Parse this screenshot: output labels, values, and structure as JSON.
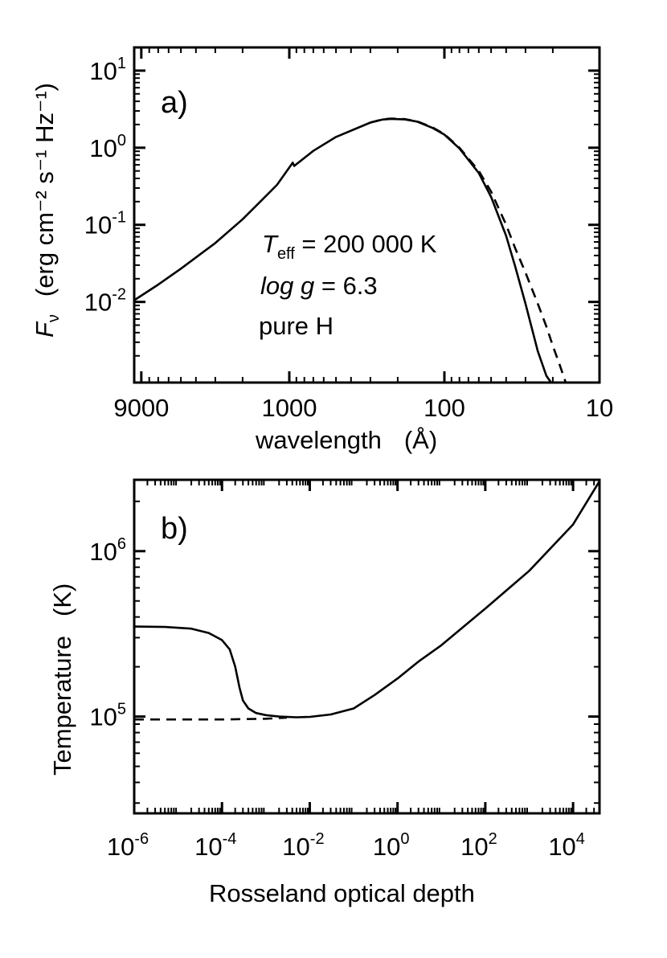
{
  "chart_data": [
    {
      "type": "line",
      "panel_label": "a)",
      "title": "",
      "xlabel": "wavelength",
      "xlabel_unit": "(Å)",
      "ylabel": "(erg cm⁻² s⁻¹ Hz⁻¹)",
      "ylabel_symbol": "F",
      "ylabel_subscript": "ν",
      "xscale": "log",
      "yscale": "log",
      "x_reversed": true,
      "xlim": [
        10000,
        10
      ],
      "ylim": [
        0.0009,
        20
      ],
      "xticks": [
        {
          "value": 9000,
          "label": "9000"
        },
        {
          "value": 1000,
          "label": "1000"
        },
        {
          "value": 100,
          "label": "100"
        },
        {
          "value": 10,
          "label": "10"
        }
      ],
      "yticks": [
        {
          "value": 0.01,
          "base": "10",
          "exp": "-2"
        },
        {
          "value": 0.1,
          "base": "10",
          "exp": "-1"
        },
        {
          "value": 1,
          "base": "10",
          "exp": "0"
        },
        {
          "value": 10,
          "base": "10",
          "exp": "1"
        }
      ],
      "annotations": {
        "teff_symbol": "T",
        "teff_subscript": "eff",
        "teff_value": " = 200 000 K",
        "logg_symbol": "log g",
        "logg_value": " = 6.3",
        "composition": "pure H"
      },
      "series": [
        {
          "name": "solid",
          "style": "solid",
          "x": [
            10000,
            7000,
            5000,
            3000,
            2000,
            1500,
            1200,
            950,
            930,
            700,
            500,
            300,
            250,
            220,
            180,
            150,
            120,
            100,
            80,
            60,
            50,
            40,
            35,
            30,
            25,
            22,
            20.5
          ],
          "y": [
            0.0105,
            0.0168,
            0.027,
            0.058,
            0.118,
            0.21,
            0.33,
            0.64,
            0.58,
            0.91,
            1.38,
            2.12,
            2.32,
            2.37,
            2.33,
            2.18,
            1.82,
            1.48,
            0.98,
            0.47,
            0.23,
            0.072,
            0.029,
            0.0095,
            0.0023,
            0.0011,
            0.0009
          ]
        },
        {
          "name": "dashed",
          "style": "dashed",
          "x": [
            300,
            250,
            220,
            180,
            150,
            120,
            100,
            80,
            60,
            50,
            40,
            35,
            30,
            25,
            22,
            20,
            18,
            16.5
          ],
          "y": [
            2.12,
            2.34,
            2.39,
            2.35,
            2.2,
            1.85,
            1.5,
            1.0,
            0.5,
            0.27,
            0.1,
            0.05,
            0.024,
            0.0095,
            0.0048,
            0.0027,
            0.0015,
            0.0009
          ]
        }
      ]
    },
    {
      "type": "line",
      "panel_label": "b)",
      "title": "",
      "xlabel": "Rosseland optical depth",
      "ylabel": "Temperature",
      "ylabel_unit": "(K)",
      "xscale": "log",
      "yscale": "log",
      "xlim": [
        1e-06,
        40000
      ],
      "ylim": [
        26000,
        2700000
      ],
      "xticks": [
        {
          "value": 1e-06,
          "base": "10",
          "exp": "-6"
        },
        {
          "value": 0.0001,
          "base": "10",
          "exp": "-4"
        },
        {
          "value": 0.01,
          "base": "10",
          "exp": "-2"
        },
        {
          "value": 1,
          "base": "10",
          "exp": "0"
        },
        {
          "value": 100,
          "base": "10",
          "exp": "2"
        },
        {
          "value": 10000,
          "base": "10",
          "exp": "4"
        }
      ],
      "yticks": [
        {
          "value": 100000,
          "base": "10",
          "exp": "5"
        },
        {
          "value": 1000000,
          "base": "10",
          "exp": "6"
        }
      ],
      "series": [
        {
          "name": "solid",
          "style": "solid",
          "x": [
            1e-06,
            5e-06,
            2e-05,
            5e-05,
            0.0001,
            0.00015,
            0.0002,
            0.00025,
            0.0003,
            0.0004,
            0.0006,
            0.001,
            0.002,
            0.005,
            0.01,
            0.03,
            0.1,
            0.3,
            1,
            3,
            10,
            100,
            1000,
            10000,
            40000
          ],
          "y": [
            350000,
            348000,
            340000,
            320000,
            290000,
            255000,
            200000,
            150000,
            125000,
            112000,
            105000,
            102000,
            100000,
            99000,
            99500,
            103000,
            112000,
            135000,
            170000,
            215000,
            270000,
            450000,
            760000,
            1450000,
            2650000
          ]
        },
        {
          "name": "dashed",
          "style": "dashed",
          "x": [
            1e-06,
            1e-05,
            0.0001,
            0.001,
            0.003
          ],
          "y": [
            96000,
            96000,
            96000,
            97000,
            98500
          ]
        }
      ]
    }
  ]
}
